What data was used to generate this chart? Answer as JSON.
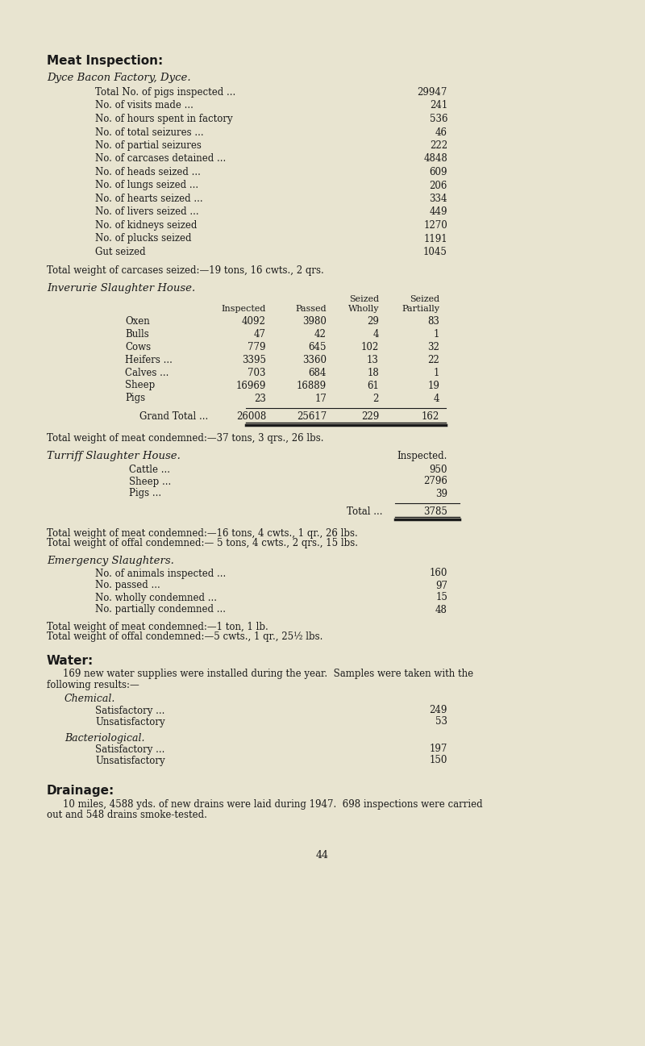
{
  "bg_color": "#e8e4d0",
  "text_color": "#1a1a1a",
  "page_number": "44",
  "section1_title": "Meat Inspection:",
  "section1_subtitle": "Dyce Bacon Factory, Dyce.",
  "dyce_rows": [
    [
      "Total No. of pigs inspected ...",
      "29947"
    ],
    [
      "No. of visits made ...",
      "241"
    ],
    [
      "No. of hours spent in factory",
      "536"
    ],
    [
      "No. of total seizures ...",
      "46"
    ],
    [
      "No. of partial seizures",
      "222"
    ],
    [
      "No. of carcases detained ...",
      "4848"
    ],
    [
      "No. of heads seized ...",
      "609"
    ],
    [
      "No. of lungs seized ...",
      "206"
    ],
    [
      "No. of hearts seized ...",
      "334"
    ],
    [
      "No. of livers seized ...",
      "449"
    ],
    [
      "No. of kidneys seized",
      "1270"
    ],
    [
      "No. of plucks seized",
      "1191"
    ],
    [
      "Gut seized",
      "1045"
    ]
  ],
  "dyce_weight_note": "Total weight of carcases seized:—19 tons, 16 cwts., 2 qrs.",
  "section2_title": "Inverurie Slaughter House.",
  "inverurie_rows": [
    [
      "Oxen",
      "4092",
      "3980",
      "29",
      "83"
    ],
    [
      "Bulls",
      "47",
      "42",
      "4",
      "1"
    ],
    [
      "Cows",
      "779",
      "645",
      "102",
      "32"
    ],
    [
      "Heifers ...",
      "3395",
      "3360",
      "13",
      "22"
    ],
    [
      "Calves ...",
      "703",
      "684",
      "18",
      "1"
    ],
    [
      "Sheep",
      "16969",
      "16889",
      "61",
      "19"
    ],
    [
      "Pigs",
      "23",
      "17",
      "2",
      "4"
    ]
  ],
  "inverurie_total": [
    "Grand Total ...",
    "26008",
    "25617",
    "229",
    "162"
  ],
  "inverurie_weight_note": "Total weight of meat condemned:—37 tons, 3 qrs., 26 lbs.",
  "section3_title": "Turriff Slaughter House.",
  "turriff_col_header": "Inspected.",
  "turriff_rows": [
    [
      "Cattle ...",
      "950"
    ],
    [
      "Sheep ...",
      "2796"
    ],
    [
      "Pigs ...",
      "39"
    ]
  ],
  "turriff_total": [
    "Total ...",
    "3785"
  ],
  "turriff_weight_note1": "Total weight of meat condemned:—16 tons, 4 cwts., 1 qr., 26 lbs.",
  "turriff_weight_note2": "Total weight of offal condemned:— 5 tons, 4 cwts., 2 qrs., 15 lbs.",
  "section4_title": "Emergency Slaughters.",
  "emergency_rows": [
    [
      "No. of animals inspected ...",
      "160"
    ],
    [
      "No. passed ...",
      "97"
    ],
    [
      "No. wholly condemned ...",
      "15"
    ],
    [
      "No. partially condemned ...",
      "48"
    ]
  ],
  "emergency_weight_note1": "Total weight of meat condemned:—1 ton, 1 lb.",
  "emergency_weight_note2": "Total weight of offal condemned:—5 cwts., 1 qr., 25½ lbs.",
  "section5_title": "Water:",
  "water_para1": "169 new water supplies were installed during the year.  Samples were taken with the",
  "water_para2": "following results:—",
  "chemical_title": "Chemical.",
  "chemical_rows": [
    [
      "Satisfactory ...",
      "249"
    ],
    [
      "Unsatisfactory",
      "53"
    ]
  ],
  "bacteriological_title": "Bacteriological.",
  "bacteriological_rows": [
    [
      "Satisfactory ...",
      "197"
    ],
    [
      "Unsatisfactory",
      "150"
    ]
  ],
  "section6_title": "Drainage:",
  "drainage_para1": "10 miles, 4588 yds. of new drains were laid during 1947.  698 inspections were carried",
  "drainage_para2": "out and 548 drains smoke-tested."
}
